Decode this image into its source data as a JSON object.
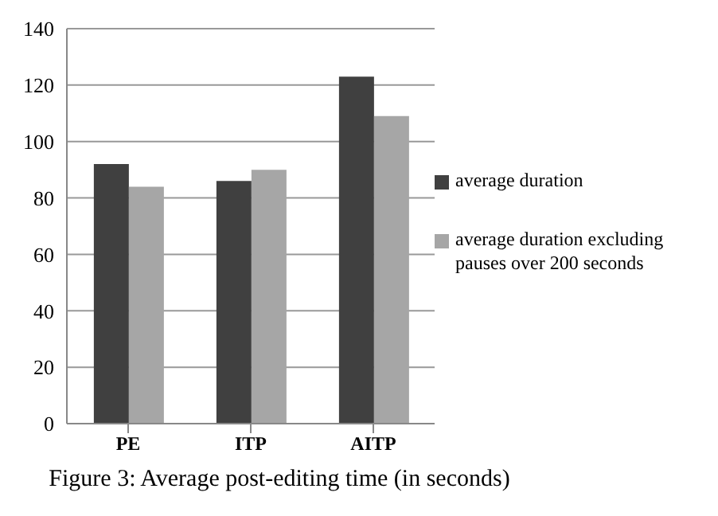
{
  "chart_data": {
    "type": "bar",
    "categories": [
      "PE",
      "ITP",
      "AITP"
    ],
    "series": [
      {
        "name": "average duration",
        "color": "#404040",
        "values": [
          92,
          86,
          123
        ]
      },
      {
        "name": "average duration excluding pauses over 200 seconds",
        "color": "#a6a6a6",
        "values": [
          84,
          90,
          109
        ]
      }
    ],
    "ylim": [
      0,
      140
    ],
    "yticks": [
      0,
      20,
      40,
      60,
      80,
      100,
      120,
      140
    ],
    "grid": "y",
    "legend": "right",
    "annotations": [
      "Figure 3: Average post-editing time (in seconds)"
    ]
  }
}
